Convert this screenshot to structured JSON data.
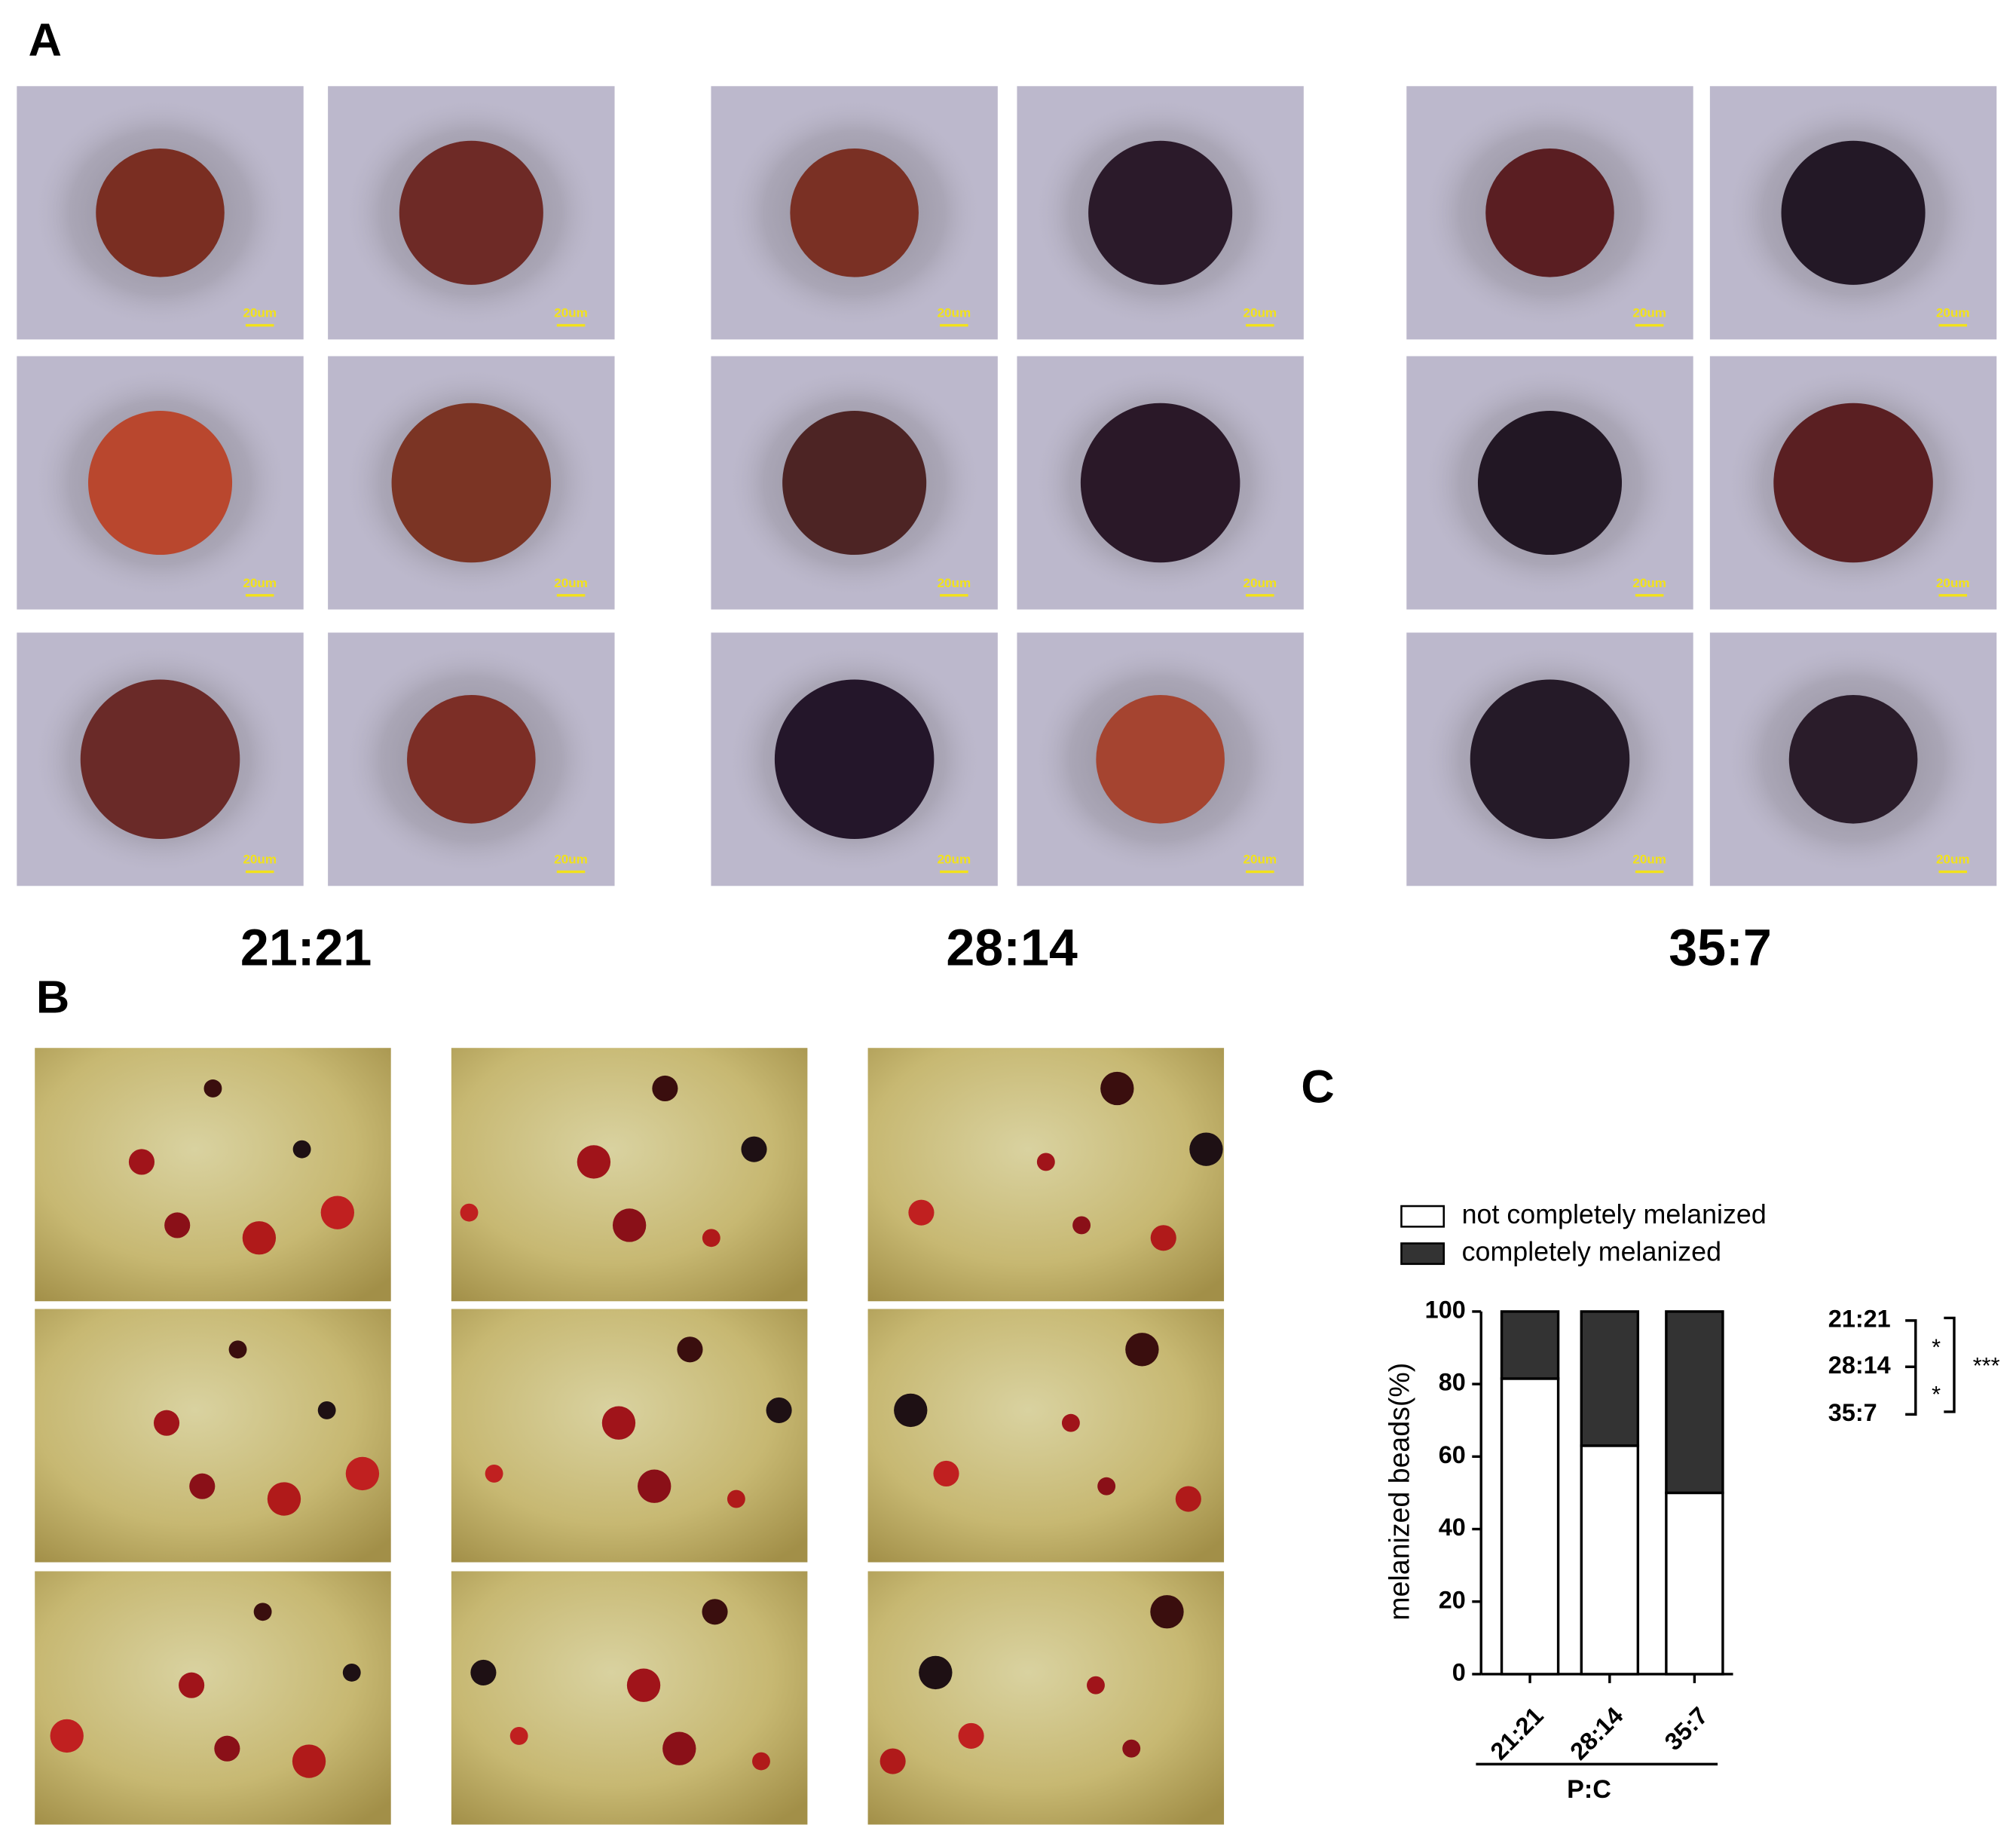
{
  "panel_a": {
    "label": "A",
    "group_labels": [
      "21:21",
      "28:14",
      "35:7"
    ],
    "scale_labels": [
      "20um",
      "20um",
      "20um",
      "20um",
      "20um",
      "20um",
      "20um",
      "20um",
      "20um",
      "20um",
      "20um",
      "20um",
      "20um",
      "20um",
      "20um",
      "20um",
      "20um",
      "20um"
    ]
  },
  "panel_b": {
    "label": "B"
  },
  "chart_data": {
    "panel_label": "C",
    "type": "bar",
    "stacked": true,
    "categories": [
      "21:21",
      "28:14",
      "35:7"
    ],
    "series": [
      {
        "name": "not completely melanized",
        "color": "#ffffff",
        "values": [
          81.5,
          63,
          50
        ]
      },
      {
        "name": "completely melanized",
        "color": "#333333",
        "values": [
          18.5,
          37,
          50
        ]
      }
    ],
    "ylabel": "melanized beads(%)",
    "xlabel": "P:C",
    "ylim": [
      0,
      100
    ],
    "yticks": [
      0,
      20,
      40,
      60,
      80,
      100
    ],
    "significance": {
      "groups": [
        "21:21",
        "28:14",
        "35:7"
      ],
      "labels": [
        "*",
        "*",
        "***"
      ]
    }
  }
}
